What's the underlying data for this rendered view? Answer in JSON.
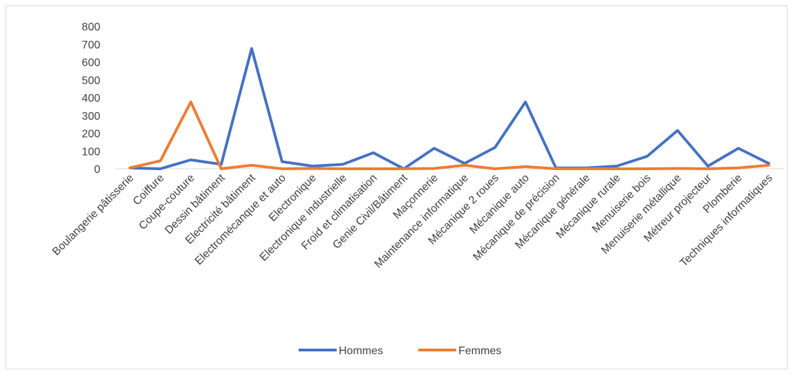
{
  "chart_data": {
    "type": "line",
    "categories": [
      "Boulangerie pâtisserie",
      "Coiffure",
      "Coupe-couture",
      "Dessin bâtiment",
      "Electricité bâtiment",
      "Electromécanque et auto",
      "Electronique",
      "Electronique industrielle",
      "Froid et climatisation",
      "Genie Civil/Bâtiment",
      "Maçonnerie",
      "Maintenance informatique",
      "Mécanique 2 roues",
      "Mécanique auto",
      "Mécanique de précision",
      "Mécanique générale",
      "Mécanique rurale",
      "Menuiserie bois",
      "Menuiserie métallique",
      "Métreur projecteur",
      "Plomberie",
      "Techniques informatiques"
    ],
    "series": [
      {
        "name": "Hommes",
        "color": "#4472c4",
        "values": [
          5,
          0,
          50,
          25,
          675,
          40,
          15,
          25,
          90,
          0,
          115,
          30,
          120,
          375,
          5,
          5,
          15,
          70,
          215,
          15,
          115,
          30
        ]
      },
      {
        "name": "Femmes",
        "color": "#ed7d31",
        "values": [
          5,
          45,
          375,
          0,
          20,
          0,
          2,
          0,
          0,
          0,
          2,
          20,
          0,
          12,
          0,
          0,
          0,
          0,
          2,
          0,
          5,
          20
        ]
      }
    ],
    "ylim": [
      0,
      800
    ],
    "yticks": [
      0,
      100,
      200,
      300,
      400,
      500,
      600,
      700,
      800
    ],
    "grid": false,
    "legend": "bottom"
  }
}
